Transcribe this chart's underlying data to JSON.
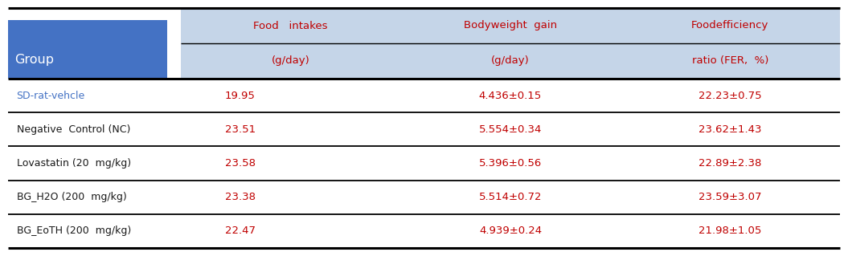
{
  "col_headers_line1": [
    "Food   intakes",
    "Bodyweight  gain",
    "Foodefficiency"
  ],
  "col_headers_line2": [
    "(g/day)",
    "(g/day)",
    "ratio (FER,  %)"
  ],
  "group_label": "Group",
  "rows": [
    {
      "group": "SD-rat-vehcle",
      "food": "19.95",
      "bw": "4.436±0.15",
      "fer": "22.23±0.75",
      "group_color": "#4472c4"
    },
    {
      "group": "Negative  Control (NC)",
      "food": "23.51",
      "bw": "5.554±0.34",
      "fer": "23.62±1.43",
      "group_color": "#1a1a1a"
    },
    {
      "group": "Lovastatin (20  mg/kg)",
      "food": "23.58",
      "bw": "5.396±0.56",
      "fer": "22.89±2.38",
      "group_color": "#1a1a1a"
    },
    {
      "group": "BG_H2O (200  mg/kg)",
      "food": "23.38",
      "bw": "5.514±0.72",
      "fer": "23.59±3.07",
      "group_color": "#1a1a1a"
    },
    {
      "group": "BG_EoTH (200  mg/kg)",
      "food": "22.47",
      "bw": "4.939±0.24",
      "fer": "21.98±1.05",
      "group_color": "#1a1a1a"
    }
  ],
  "header_bg": "#c5d5e8",
  "group_header_bg": "#4472c4",
  "data_text_color": "#c00000",
  "header_text_color": "#c00000",
  "border_color": "#000000",
  "background_color": "#ffffff"
}
